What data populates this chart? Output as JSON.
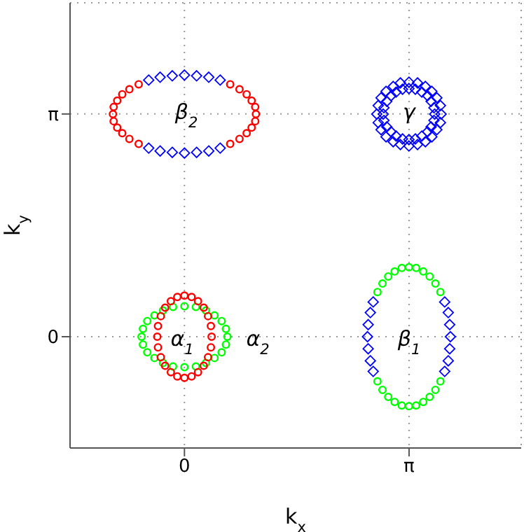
{
  "chart_data": {
    "type": "scatter",
    "xlabel": "k$_{x}$",
    "ylabel": "k$_{y}$",
    "xlim": [
      -1.6,
      4.71
    ],
    "ylim": [
      -1.57,
      4.71
    ],
    "xticks": [
      0,
      {
        "value": 3.14159,
        "label": "π"
      }
    ],
    "yticks": [
      0,
      {
        "value": 3.14159,
        "label": "π"
      }
    ],
    "grid": true,
    "legend": false,
    "annotations": [
      "β$_{2}$",
      "γ",
      "α$_{1}$",
      "α$_{2}$",
      "β$_{1}$"
    ],
    "series": [
      {
        "color": "#ff0000",
        "marker": "circle",
        "x": [
          0.64,
          0.77,
          0.87,
          0.94,
          0.99,
          1,
          0.99,
          0.94,
          0.87,
          0.77,
          0.64,
          -0.64,
          -0.77,
          -0.87,
          -0.94,
          -0.99,
          -1,
          -0.99,
          -0.94,
          -0.87,
          -0.77,
          -0.64
        ],
        "values": [
          2.72,
          2.79,
          2.87,
          2.95,
          3.04,
          3.14,
          3.24,
          3.33,
          3.42,
          3.49,
          3.56,
          2.72,
          2.79,
          2.87,
          2.95,
          3.04,
          3.14,
          3.24,
          3.33,
          3.42,
          3.49,
          3.56
        ]
      },
      {
        "color": "#0000ff",
        "marker": "diamond",
        "x": [
          0.5,
          0.34,
          0.17,
          0,
          -0.17,
          -0.34,
          -0.5,
          0.5,
          0.34,
          0.17,
          0,
          -0.17,
          -0.34,
          -0.5
        ],
        "values": [
          3.62,
          3.66,
          3.68,
          3.69,
          3.68,
          3.66,
          3.62,
          2.66,
          2.62,
          2.6,
          2.59,
          2.6,
          2.62,
          2.66
        ]
      },
      {
        "color": "#0000ff",
        "marker": "diamond",
        "x": [
          3.59,
          3.58,
          3.53,
          3.46,
          3.37,
          3.26,
          3.14,
          3.02,
          2.92,
          2.82,
          2.75,
          2.71,
          2.69,
          2.71,
          2.75,
          2.82,
          2.92,
          3.02,
          3.14,
          3.26,
          3.37,
          3.46,
          3.53,
          3.58,
          3.5,
          3.49,
          3.45,
          3.4,
          3.32,
          3.23,
          3.14,
          3.05,
          2.96,
          2.89,
          2.83,
          2.79,
          2.78,
          2.79,
          2.83,
          2.89,
          2.96,
          3.05,
          3.14,
          3.23,
          3.32,
          3.4,
          3.45,
          3.49
        ],
        "values": [
          3.14,
          3.26,
          3.37,
          3.46,
          3.53,
          3.58,
          3.59,
          3.58,
          3.53,
          3.46,
          3.37,
          3.26,
          3.14,
          3.02,
          2.92,
          2.82,
          2.75,
          2.71,
          2.69,
          2.71,
          2.75,
          2.82,
          2.92,
          3.02,
          3.14,
          3.23,
          3.32,
          3.4,
          3.45,
          3.49,
          3.5,
          3.49,
          3.45,
          3.4,
          3.32,
          3.23,
          3.14,
          3.05,
          2.96,
          2.89,
          2.83,
          2.79,
          2.78,
          2.79,
          2.83,
          2.89,
          2.96,
          3.05
        ]
      },
      {
        "color": "#00ff00",
        "marker": "circle",
        "x": [
          0.6,
          0.58,
          0.52,
          0.42,
          0.3,
          0.16,
          0,
          -0.16,
          -0.3,
          -0.42,
          -0.52,
          -0.58,
          -0.6,
          -0.58,
          -0.52,
          -0.42,
          -0.3,
          -0.16,
          0,
          0.16,
          0.3,
          0.42,
          0.52,
          0.58
        ],
        "values": [
          0,
          0.11,
          0.22,
          0.3,
          0.37,
          0.42,
          0.43,
          0.42,
          0.37,
          0.3,
          0.22,
          0.11,
          0,
          -0.11,
          -0.22,
          -0.3,
          -0.37,
          -0.42,
          -0.43,
          -0.42,
          -0.37,
          -0.3,
          -0.22,
          -0.11
        ]
      },
      {
        "color": "#ff0000",
        "marker": "circle",
        "x": [
          0.38,
          0.37,
          0.33,
          0.27,
          0.19,
          0.1,
          0,
          -0.1,
          -0.19,
          -0.27,
          -0.33,
          -0.37,
          -0.38,
          -0.37,
          -0.33,
          -0.27,
          -0.19,
          -0.1,
          0,
          0.1,
          0.19,
          0.27,
          0.33,
          0.37
        ],
        "values": [
          0,
          0.15,
          0.29,
          0.41,
          0.5,
          0.56,
          0.58,
          0.56,
          0.5,
          0.41,
          0.29,
          0.15,
          0,
          -0.15,
          -0.29,
          -0.41,
          -0.5,
          -0.56,
          -0.58,
          -0.56,
          -0.5,
          -0.41,
          -0.29,
          -0.15
        ]
      },
      {
        "color": "#0000ff",
        "marker": "diamond",
        "x": [
          3.64,
          3.69,
          3.71,
          3.72,
          3.71,
          3.69,
          3.64,
          2.64,
          2.6,
          2.57,
          2.56,
          2.57,
          2.6,
          2.64
        ],
        "values": [
          -0.49,
          -0.34,
          -0.17,
          0,
          0.17,
          0.34,
          0.49,
          -0.49,
          -0.34,
          -0.17,
          0,
          0.17,
          0.34,
          0.49
        ]
      },
      {
        "color": "#00ff00",
        "marker": "circle",
        "x": [
          3.58,
          3.51,
          3.43,
          3.34,
          3.24,
          3.14,
          3.04,
          2.94,
          2.85,
          2.77,
          2.7,
          3.58,
          3.51,
          3.43,
          3.34,
          3.24,
          3.14,
          3.04,
          2.94,
          2.85,
          2.77,
          2.7
        ],
        "values": [
          0.63,
          0.75,
          0.85,
          0.92,
          0.97,
          0.98,
          0.97,
          0.92,
          0.85,
          0.75,
          0.63,
          -0.63,
          -0.75,
          -0.85,
          -0.92,
          -0.97,
          -0.98,
          -0.97,
          -0.92,
          -0.85,
          -0.75,
          -0.63
        ]
      }
    ]
  }
}
